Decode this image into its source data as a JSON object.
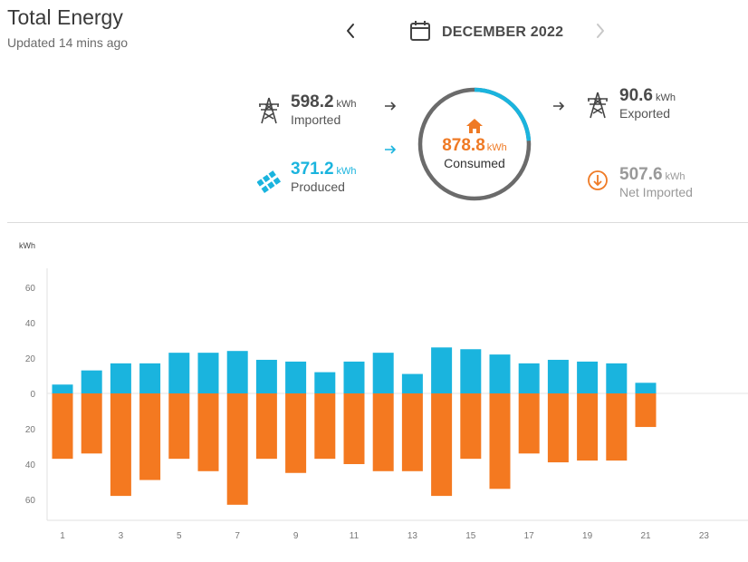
{
  "header": {
    "title": "Total Energy",
    "updated": "Updated 14 mins ago",
    "period": "DECEMBER 2022"
  },
  "summary": {
    "imported": {
      "value": "598.2",
      "unit": "kWh",
      "label": "Imported"
    },
    "produced": {
      "value": "371.2",
      "unit": "kWh",
      "label": "Produced"
    },
    "consumed": {
      "value": "878.8",
      "unit": "kWh",
      "label": "Consumed",
      "solar_fraction": 0.24
    },
    "exported": {
      "value": "90.6",
      "unit": "kWh",
      "label": "Exported"
    },
    "net_imported": {
      "value": "507.6",
      "unit": "kWh",
      "label": "Net Imported"
    }
  },
  "colors": {
    "solar": "#1ab4de",
    "consumption": "#f47920",
    "grid_ring": "#6b6b6b",
    "text_grey": "#4a4a4a"
  },
  "icons": {
    "prev": "chevron-left-icon",
    "next": "chevron-right-icon",
    "calendar": "calendar-icon",
    "import": "power-tower-icon",
    "export": "power-tower-icon",
    "produced": "solar-panel-icon",
    "home": "house-icon",
    "net": "arrow-down-circle-icon"
  },
  "chart_data": {
    "type": "bar",
    "ylabel": "kWh",
    "ylim": [
      -70,
      70
    ],
    "y_ticks": [
      60,
      40,
      20,
      0,
      20,
      40,
      60
    ],
    "x_tick_labels": [
      "1",
      "3",
      "5",
      "7",
      "9",
      "11",
      "13",
      "15",
      "17",
      "19",
      "21",
      "23"
    ],
    "categories": [
      1,
      2,
      3,
      4,
      5,
      6,
      7,
      8,
      9,
      10,
      11,
      12,
      13,
      14,
      15,
      16,
      17,
      18,
      19,
      20,
      21,
      22,
      23,
      24
    ],
    "series": [
      {
        "color": "#1ab4de",
        "values": [
          5,
          13,
          17,
          17,
          23,
          23,
          24,
          19,
          18,
          12,
          18,
          23,
          11,
          26,
          25,
          22,
          17,
          19,
          18,
          17,
          6,
          null,
          null,
          null
        ]
      },
      {
        "color": "#f47920",
        "values": [
          -37,
          -34,
          -58,
          -49,
          -37,
          -44,
          -63,
          -37,
          -45,
          -37,
          -40,
          -44,
          -44,
          -58,
          -37,
          -54,
          -34,
          -39,
          -38,
          -38,
          -19,
          null,
          null,
          null
        ]
      }
    ]
  }
}
